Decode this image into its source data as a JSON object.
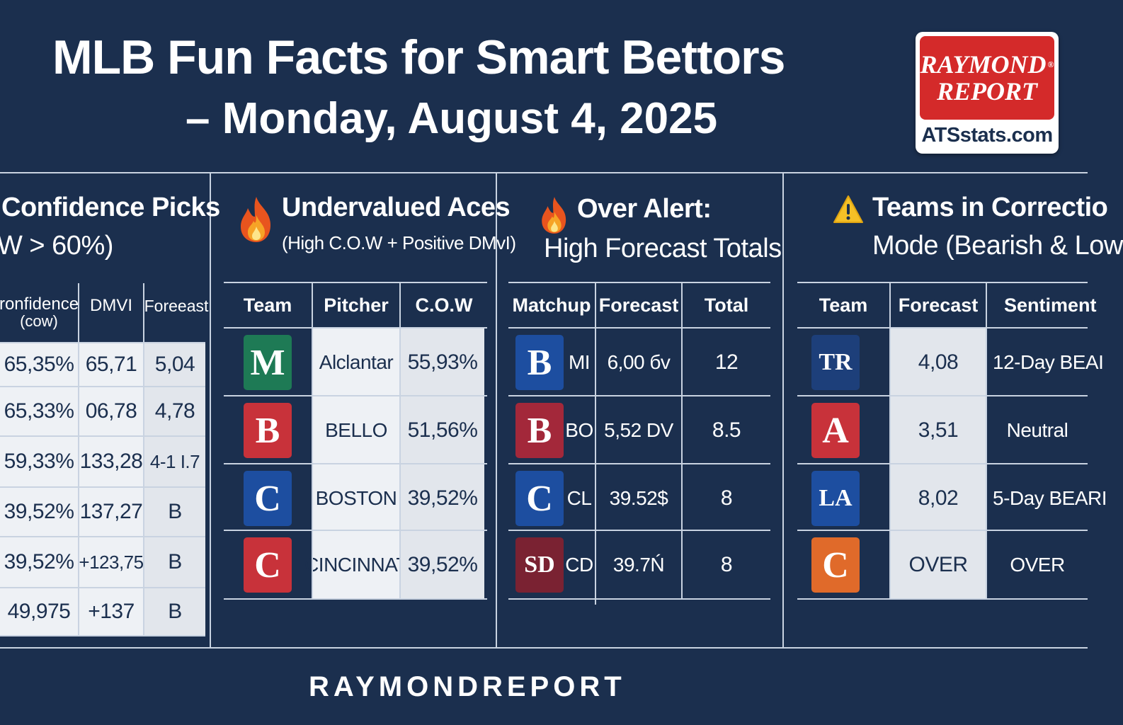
{
  "header": {
    "title_line1": "MLB Fun Facts for Smart Bettors",
    "title_line2": "– Monday, August 4, 2025"
  },
  "logo": {
    "line1": "RAYMOND",
    "reg": "®",
    "line2": "REPORT",
    "site": "ATSstats.com",
    "color_red": "#d42a2a"
  },
  "colors": {
    "background": "#1b2f4e",
    "cell_light": "#eef1f5",
    "grid": "#c9d3e1"
  },
  "panel1": {
    "title": "Confidence Picks",
    "subtitle": "W > 60%)",
    "headers": [
      "ronfidence",
      "(cow)",
      "DMVI",
      "Foreeast"
    ],
    "rows": [
      [
        "65,35%",
        "65,71",
        "5,04"
      ],
      [
        "65,33%",
        "06,78",
        "4,78"
      ],
      [
        "59,33%",
        "133,28",
        "4-1 I.7"
      ],
      [
        "39,52%",
        "137,27",
        "B"
      ],
      [
        "39,52%",
        "+123,75",
        "B"
      ],
      [
        "49,975",
        "+137",
        "B"
      ]
    ]
  },
  "panel2": {
    "title": "Undervalued Aces",
    "subtitle": "(High C.O.W + Positive DMvI)",
    "icon": "fire-icon",
    "headers": [
      "Team",
      "Pitcher",
      "C.O.W"
    ],
    "rows": [
      {
        "logo": "M",
        "logo_color": "#1e7a55",
        "pitcher": "Alclantar",
        "cow": "55,93%"
      },
      {
        "logo": "B",
        "logo_color": "#c8323a",
        "pitcher": "BELLO",
        "cow": "51,56%"
      },
      {
        "logo": "C",
        "logo_color": "#1d4ea0",
        "pitcher": "BOSTON",
        "cow": "39,52%"
      },
      {
        "logo": "C",
        "logo_color": "#c8323a",
        "pitcher": "CINCINNAT",
        "cow": "39,52%"
      }
    ]
  },
  "panel3": {
    "title": "Over Alert:",
    "subtitle": "High Forecast Totals",
    "icon": "fire-icon",
    "headers": [
      "Matchup",
      "Forecast",
      "Total"
    ],
    "rows": [
      {
        "logo": "B",
        "logo_color": "#1d4ea0",
        "team": "MI",
        "forecast": "6,00 бv",
        "total": "12"
      },
      {
        "logo": "B",
        "logo_color": "#a3283a",
        "team": "BO",
        "forecast": "5,52 DV",
        "total": "8.5"
      },
      {
        "logo": "C",
        "logo_color": "#1d4ea0",
        "team": "CL",
        "forecast": "39.52$",
        "total": "8"
      },
      {
        "logo": "SD",
        "logo_color": "#7a2232",
        "team": "CD",
        "forecast": "39.7Ń",
        "total": "8"
      }
    ]
  },
  "panel4": {
    "title": "Teams in Correctio",
    "subtitle": "Mode (Bearish & Low",
    "icon": "warning-icon",
    "headers": [
      "Team",
      "Forecast",
      "Sentiment"
    ],
    "rows": [
      {
        "logo": "TR",
        "logo_color": "#1d3f7a",
        "forecast": "4,08",
        "sentiment": "12-Day BEAI"
      },
      {
        "logo": "A",
        "logo_color": "#c8323a",
        "forecast": "3,51",
        "sentiment": "Neutral"
      },
      {
        "logo": "LA",
        "logo_color": "#1d4ea0",
        "forecast": "8,02",
        "sentiment": "5-Day BEARI"
      },
      {
        "logo": "C",
        "logo_color": "#e06a2a",
        "forecast": "OVER",
        "sentiment": "OVER"
      }
    ]
  },
  "footer": {
    "text": "RAYMONDREPORT"
  }
}
